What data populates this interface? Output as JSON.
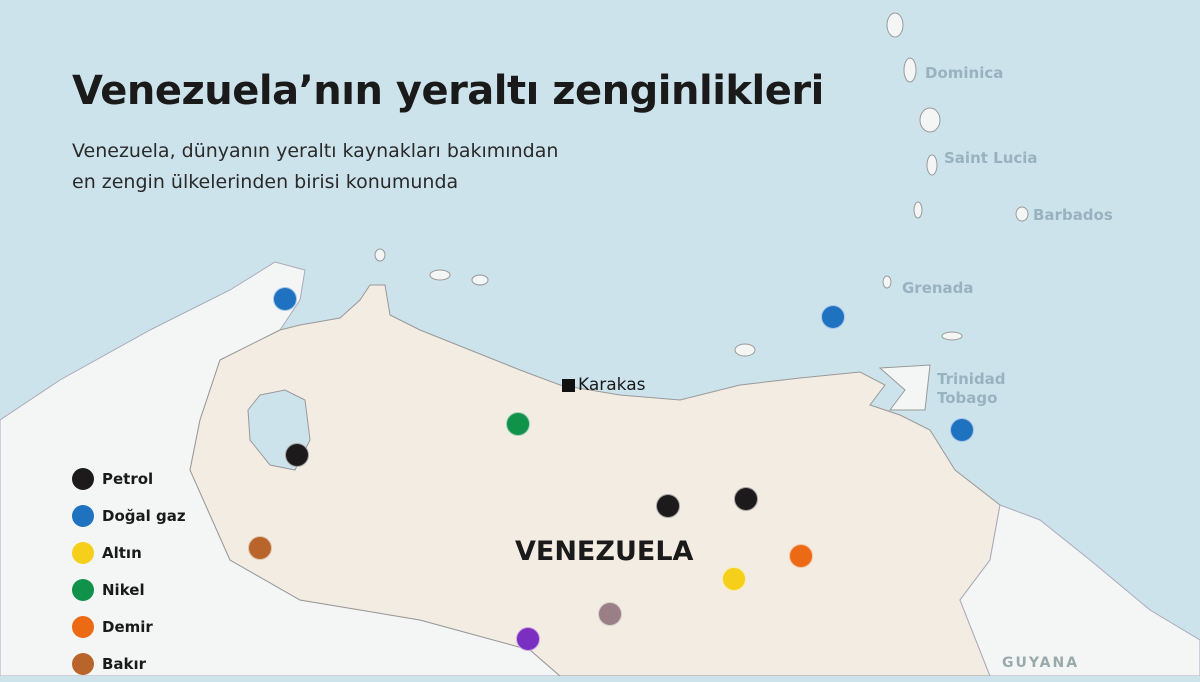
{
  "title": "Venezuela’nın yeraltı zenginlikleri",
  "subtitle_line1": "Venezuela, dünyanın yeraltı kaynakları bakımından",
  "subtitle_line2": "en zengin ülkelerinden birisi konumunda",
  "country_label": "VENEZUELA",
  "capital": "Karakas",
  "places": {
    "dominica": "Dominica",
    "saint_lucia": "Saint Lucia",
    "barbados": "Barbados",
    "grenada": "Grenada",
    "trinidad1": "Trinidad",
    "trinidad2": "Tobago",
    "guyana": "GUYANA"
  },
  "legend": [
    {
      "label": "Petrol",
      "color": "#1c1a1b"
    },
    {
      "label": "Doğal gaz",
      "color": "#1f72c0"
    },
    {
      "label": "Altın",
      "color": "#f5cf1a"
    },
    {
      "label": "Nikel",
      "color": "#10924a"
    },
    {
      "label": "Demir",
      "color": "#ec6a14"
    },
    {
      "label": "Bakır",
      "color": "#b8642a"
    }
  ],
  "colors": {
    "sea": "#cde3ec",
    "venezuela": "#f3ece2",
    "neighbors": "#f4f5f5",
    "unlabeled_mauve": "#9a7f86",
    "unlabeled_purple": "#7b2fc0"
  }
}
